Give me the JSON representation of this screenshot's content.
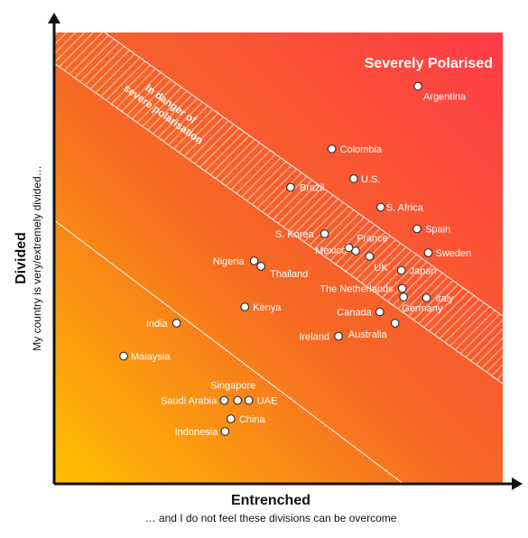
{
  "chart_data": {
    "type": "scatter",
    "title": "",
    "xlabel": "Entrenched",
    "xlabel_sub": "… and I do not feel these divisions can be overcome",
    "ylabel": "Divided",
    "ylabel_sub": "My country is very/extremely divided…",
    "xlim": [
      0,
      100
    ],
    "ylim": [
      0,
      100
    ],
    "grid": false,
    "zones": {
      "severe": "Severely Polarised",
      "danger_line1": "In danger of",
      "danger_line2": "severe polarisation"
    },
    "points": [
      {
        "name": "Argentina",
        "x": 81.1,
        "y": 88.1
      },
      {
        "name": "Colombia",
        "x": 61.9,
        "y": 74.2
      },
      {
        "name": "U.S.",
        "x": 66.8,
        "y": 67.6
      },
      {
        "name": "Brazil",
        "x": 52.7,
        "y": 65.7
      },
      {
        "name": "S. Africa",
        "x": 72.8,
        "y": 61.3
      },
      {
        "name": "Spain",
        "x": 80.9,
        "y": 56.5
      },
      {
        "name": "S. Korea",
        "x": 60.3,
        "y": 55.4
      },
      {
        "name": "Mexico",
        "x": 67.2,
        "y": 51.6
      },
      {
        "name": "France",
        "x": 65.7,
        "y": 52.3
      },
      {
        "name": "Sweden",
        "x": 83.4,
        "y": 51.2
      },
      {
        "name": "UK",
        "x": 70.3,
        "y": 50.4
      },
      {
        "name": "Nigeria",
        "x": 44.6,
        "y": 49.4
      },
      {
        "name": "Thailand",
        "x": 46.1,
        "y": 48.2
      },
      {
        "name": "Japan",
        "x": 77.4,
        "y": 47.3
      },
      {
        "name": "The Netherlands",
        "x": 77.6,
        "y": 43.3
      },
      {
        "name": "Italy",
        "x": 83.0,
        "y": 41.2
      },
      {
        "name": "Kenya",
        "x": 42.5,
        "y": 39.2
      },
      {
        "name": "Canada",
        "x": 72.6,
        "y": 38.1
      },
      {
        "name": "Germany",
        "x": 77.9,
        "y": 41.4
      },
      {
        "name": "India",
        "x": 27.3,
        "y": 35.6
      },
      {
        "name": "Australia",
        "x": 76.0,
        "y": 35.6
      },
      {
        "name": "Ireland",
        "x": 63.4,
        "y": 32.7
      },
      {
        "name": "Malaysia",
        "x": 15.5,
        "y": 28.3
      },
      {
        "name": "Saudi Arabia",
        "x": 37.9,
        "y": 18.5
      },
      {
        "name": "Singapore",
        "x": 40.9,
        "y": 18.5
      },
      {
        "name": "UAE",
        "x": 43.4,
        "y": 18.5
      },
      {
        "name": "China",
        "x": 39.4,
        "y": 14.4
      },
      {
        "name": "Indonesia",
        "x": 38.1,
        "y": 11.6
      }
    ]
  },
  "colors": {
    "gradient_low": "#ffc000",
    "gradient_mid": "#f56a23",
    "gradient_high": "#ff3b48",
    "line": "#ffffff",
    "axis": "#111111"
  }
}
